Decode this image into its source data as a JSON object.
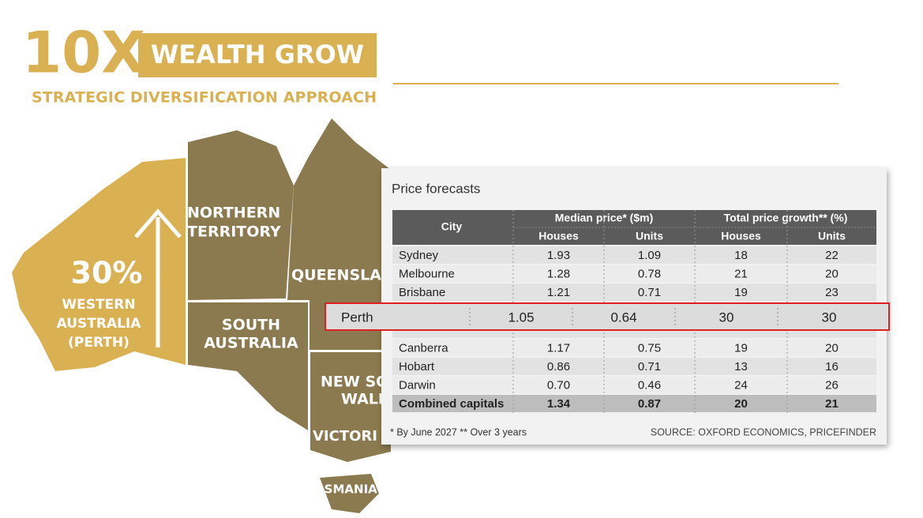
{
  "header": {
    "logo": "10X",
    "badge": "WEALTH GROW",
    "subtitle": "STRATEGIC DIVERSIFICATION APPROACH"
  },
  "map": {
    "wa_percent": "30%",
    "wa_label": [
      "WESTERN",
      "AUSTRALIA",
      "(PERTH)"
    ],
    "nt_label": [
      "NORTHERN",
      "TERRITORY"
    ],
    "qld_label": [
      "QUEENSLAN"
    ],
    "sa_label": [
      "SOUTH",
      "AUSTRALIA"
    ],
    "nsw_label": [
      "NEW SO",
      "WALE"
    ],
    "vic_label": [
      "VICTORI"
    ],
    "tas_label": [
      "TASMANIA"
    ]
  },
  "table": {
    "title": "Price forecasts",
    "city_header": "City",
    "groups": [
      "Median price* ($m)",
      "Total price growth** (%)"
    ],
    "subheaders": [
      "Houses",
      "Units",
      "Houses",
      "Units"
    ],
    "rows": [
      [
        "Sydney",
        "1.93",
        "1.09",
        "18",
        "22"
      ],
      [
        "Melbourne",
        "1.28",
        "0.78",
        "21",
        "20"
      ],
      [
        "Brisbane",
        "1.21",
        "0.71",
        "19",
        "23"
      ],
      null,
      null,
      [
        "Canberra",
        "1.17",
        "0.75",
        "19",
        "20"
      ],
      [
        "Hobart",
        "0.86",
        "0.71",
        "13",
        "16"
      ],
      [
        "Darwin",
        "0.70",
        "0.46",
        "24",
        "26"
      ]
    ],
    "total": [
      "Combined capitals",
      "1.34",
      "0.87",
      "20",
      "21"
    ],
    "highlight": [
      "Perth",
      "1.05",
      "0.64",
      "30",
      "30"
    ],
    "footnote": "* By June 2027 ** Over 3 years",
    "source": "SOURCE: OXFORD ECONOMICS, PRICEFINDER"
  }
}
